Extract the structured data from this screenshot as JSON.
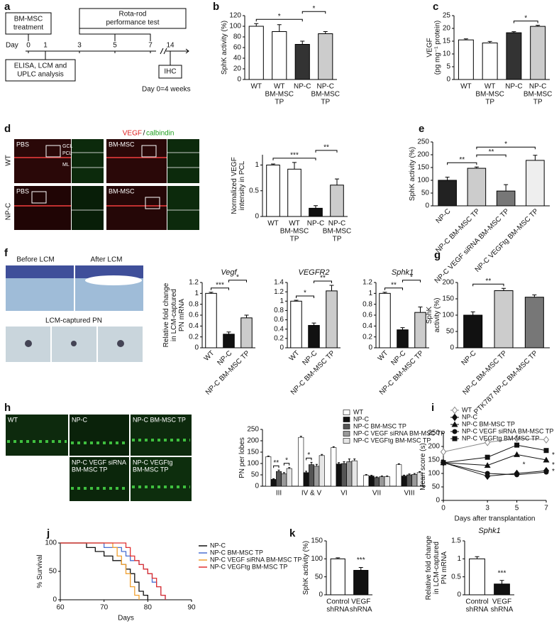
{
  "figure": {
    "panel_letters": [
      "a",
      "b",
      "c",
      "d",
      "e",
      "f",
      "g",
      "h",
      "i",
      "j",
      "k"
    ],
    "a": {
      "treatment": [
        "BM-MSC",
        "treatment"
      ],
      "rotarod": [
        "Rota-rod",
        "performance test"
      ],
      "day": "Day",
      "days": [
        "0",
        "1",
        "3",
        "5",
        "7",
        "14"
      ],
      "analysis": [
        "ELISA, LCM and",
        "UPLC analysis"
      ],
      "ihc": "IHC",
      "note": "Day 0=4 weeks"
    },
    "d": {
      "stain_red": "VEGF",
      "stain_sep": "/",
      "stain_green": "calbindin",
      "rows": [
        "WT",
        "NP-C"
      ],
      "images": [
        "PBS",
        "BM-MSC",
        "PBS",
        "BM-MSC"
      ],
      "layers": [
        "GCL",
        "PCL",
        "ML"
      ]
    },
    "f": {
      "images": [
        "Before LCM",
        "After LCM"
      ],
      "captured": "LCM-captured PN"
    },
    "h": {
      "images": [
        "WT",
        "NP-C",
        "NP-C BM-MSC TP"
      ],
      "images2": [
        [
          "NP-C VEGF siRNA",
          "BM-MSC TP"
        ],
        [
          "NP-C VEGFtg",
          "BM-MSC TP"
        ]
      ]
    }
  },
  "chart_data": [
    {
      "type": "bar",
      "ylabel": [
        "SphK activity (%)"
      ],
      "categories": [
        [
          "WT"
        ],
        [
          "WT",
          "BM-MSC",
          "TP"
        ],
        [
          "NP-C"
        ],
        [
          "NP-C",
          "BM-MSC",
          "TP"
        ]
      ],
      "values": [
        100,
        90,
        66,
        86
      ],
      "errors": [
        5,
        13,
        6,
        4
      ],
      "colors": [
        "#ffffff",
        "#ffffff",
        "#333333",
        "#cccccc"
      ],
      "ylim": [
        0,
        120
      ],
      "yticks": [
        0,
        20,
        40,
        60,
        80,
        100,
        120
      ],
      "annotations": [
        {
          "text": "*",
          "pair": [
            0,
            2
          ]
        },
        {
          "text": "*",
          "pair": [
            2,
            3
          ]
        }
      ]
    },
    {
      "type": "bar",
      "ylabel": [
        "VEGF",
        "(pg mg⁻¹ protein)"
      ],
      "categories": [
        [
          "WT"
        ],
        [
          "WT",
          "BM-MSC",
          "TP"
        ],
        [
          "NP-C"
        ],
        [
          "NP-C",
          "BM-MSC",
          "TP"
        ]
      ],
      "values": [
        15.5,
        14.3,
        18.3,
        20.8
      ],
      "errors": [
        0.4,
        0.6,
        0.4,
        0.4
      ],
      "colors": [
        "#ffffff",
        "#ffffff",
        "#333333",
        "#cccccc"
      ],
      "ylim": [
        0,
        25
      ],
      "yticks": [
        0,
        5,
        10,
        15,
        20,
        25
      ],
      "annotations": [
        {
          "text": "*",
          "pair": [
            2,
            3
          ]
        }
      ]
    },
    {
      "type": "bar",
      "ylabel": [
        "Normalized VEGF",
        "intensity in PCL"
      ],
      "categories": [
        [
          "WT"
        ],
        [
          "WT",
          "BM-MSC",
          "TP"
        ],
        [
          "NP-C"
        ],
        [
          "NP-C",
          "BM-MSC",
          "TP"
        ]
      ],
      "values": [
        1,
        0.92,
        0.16,
        0.61
      ],
      "errors": [
        0.02,
        0.13,
        0.05,
        0.12
      ],
      "colors": [
        "#ffffff",
        "#ffffff",
        "#111111",
        "#cccccc"
      ],
      "ylim": [
        0,
        1.2
      ],
      "yticks": [
        0,
        0.5,
        1
      ],
      "annotations": [
        {
          "text": "***",
          "pair": [
            0,
            2
          ]
        },
        {
          "text": "**",
          "pair": [
            2,
            3
          ]
        }
      ]
    },
    {
      "type": "bar",
      "ylabel": [
        "SphK activity (%)"
      ],
      "rotate_labels": true,
      "categories": [
        "NP-C",
        "NP-C BM-MSC TP",
        "NP-C VEGF siRNA BM-MSC TP",
        "NP-C VEGFtg BM-MSC TP"
      ],
      "values": [
        100,
        147,
        58,
        178
      ],
      "errors": [
        12,
        5,
        25,
        20
      ],
      "colors": [
        "#222222",
        "#cccccc",
        "#777777",
        "#eeeeee"
      ],
      "ylim": [
        0,
        250
      ],
      "yticks": [
        0,
        50,
        100,
        150,
        200,
        250
      ],
      "annotations": [
        {
          "text": "**",
          "pair": [
            0,
            1
          ]
        },
        {
          "text": "**",
          "pair": [
            1,
            2
          ]
        },
        {
          "text": "*",
          "pair": [
            1,
            3
          ]
        }
      ]
    },
    {
      "type": "bar",
      "title": "Vegf",
      "ylabel": [
        "Relative fold change",
        "in LCM-captured",
        "PN mRNA"
      ],
      "rotate_labels": true,
      "categories": [
        "WT",
        "NP-C",
        "NP-C BM-MSC TP"
      ],
      "values": [
        1,
        0.25,
        0.55
      ],
      "errors": [
        0.02,
        0.04,
        0.05
      ],
      "colors": [
        "#ffffff",
        "#111111",
        "#cccccc"
      ],
      "ylim": [
        0,
        1.2
      ],
      "yticks": [
        0,
        0.2,
        0.4,
        0.6,
        0.8,
        1,
        1.2
      ],
      "annotations": [
        {
          "text": "***",
          "pair": [
            0,
            1
          ]
        },
        {
          "text": "*",
          "pair": [
            1,
            2
          ]
        }
      ]
    },
    {
      "type": "bar",
      "title": "VEGFR2",
      "rotate_labels": true,
      "categories": [
        "WT",
        "NP-C",
        "NP-C BM-MSC TP"
      ],
      "values": [
        1,
        0.48,
        1.22
      ],
      "errors": [
        0.02,
        0.05,
        0.12
      ],
      "colors": [
        "#ffffff",
        "#111111",
        "#cccccc"
      ],
      "ylim": [
        0,
        1.4
      ],
      "yticks": [
        0,
        0.2,
        0.4,
        0.6,
        0.8,
        1,
        1.2,
        1.4
      ],
      "annotations": [
        {
          "text": "*",
          "pair": [
            0,
            1
          ]
        },
        {
          "text": "**",
          "pair": [
            1,
            2
          ]
        }
      ]
    },
    {
      "type": "bar",
      "title": "Sphk1",
      "rotate_labels": true,
      "categories": [
        "WT",
        "NP-C",
        "NP-C BM-MSC TP"
      ],
      "values": [
        1,
        0.33,
        0.65
      ],
      "errors": [
        0.02,
        0.04,
        0.1
      ],
      "colors": [
        "#ffffff",
        "#111111",
        "#cccccc"
      ],
      "ylim": [
        0,
        1.2
      ],
      "yticks": [
        0,
        0.2,
        0.4,
        0.6,
        0.8,
        1,
        1.2
      ],
      "annotations": [
        {
          "text": "**",
          "pair": [
            0,
            1
          ]
        },
        {
          "text": "*",
          "pair": [
            1,
            2
          ]
        }
      ]
    },
    {
      "type": "bar",
      "ylabel": [
        "SphK",
        "activity (%)"
      ],
      "rotate_labels": true,
      "categories": [
        "NP-C",
        "NP-C BM-MSC TP",
        "PTK787 NP-C BM-MSC TP"
      ],
      "values": [
        100,
        175,
        155
      ],
      "errors": [
        10,
        7,
        7
      ],
      "colors": [
        "#111111",
        "#cccccc",
        "#777777"
      ],
      "ylim": [
        0,
        200
      ],
      "yticks": [
        0,
        50,
        100,
        150,
        200
      ],
      "annotations": [
        {
          "text": "**",
          "pair": [
            0,
            1
          ]
        }
      ]
    },
    {
      "type": "grouped_bar",
      "ylabel": [
        "PN per lobes"
      ],
      "legend": "upper right",
      "categories": [
        "III",
        "IV & V",
        "VI",
        "VII",
        "VIII"
      ],
      "series": [
        {
          "name": "WT",
          "color": "#ffffff",
          "values": [
            130,
            215,
            170,
            48,
            95
          ],
          "errors": [
            3,
            5,
            4,
            3,
            4
          ]
        },
        {
          "name": "NP-C",
          "color": "#111111",
          "values": [
            30,
            60,
            98,
            45,
            45
          ],
          "errors": [
            3,
            6,
            6,
            3,
            4
          ]
        },
        {
          "name": "NP-C BM-MSC TP",
          "color": "#555555",
          "values": [
            65,
            95,
            100,
            38,
            50
          ],
          "errors": [
            6,
            10,
            8,
            3,
            4
          ]
        },
        {
          "name": "NP-C VEGF siRNA BM-MSC TP",
          "color": "#999999",
          "values": [
            55,
            88,
            108,
            42,
            52
          ],
          "errors": [
            5,
            8,
            12,
            3,
            4
          ]
        },
        {
          "name": "NP-C VEGFtg BM-MSC TP",
          "color": "#e6e6e6",
          "values": [
            78,
            135,
            112,
            42,
            60
          ],
          "errors": [
            4,
            5,
            8,
            3,
            4
          ]
        }
      ],
      "ylim": [
        0,
        250
      ],
      "yticks": [
        0,
        50,
        100,
        150,
        200,
        250
      ],
      "annotations": [
        {
          "text": "**",
          "category": 0,
          "pair": [
            1,
            2
          ]
        },
        {
          "text": "*",
          "category": 0,
          "pair": [
            3,
            4
          ]
        },
        {
          "text": "*",
          "category": 1,
          "pair": [
            1,
            2
          ]
        }
      ]
    },
    {
      "type": "line",
      "ylabel": [
        "Mean score (s)"
      ],
      "xlabel": "Days after transplantation",
      "legend": "upper left",
      "x": [
        0,
        3,
        5,
        7
      ],
      "xlim": [
        0,
        7
      ],
      "xticks": [
        0,
        3,
        5,
        7
      ],
      "series": [
        {
          "name": "WT",
          "color": "#888888",
          "marker": "diamond-open",
          "values": [
            180,
            215,
            230,
            225
          ]
        },
        {
          "name": "NP-C",
          "color": "#111111",
          "marker": "diamond",
          "values": [
            140,
            90,
            100,
            110
          ]
        },
        {
          "name": "NP-C BM-MSC TP",
          "color": "#111111",
          "marker": "triangle",
          "values": [
            140,
            130,
            170,
            150
          ]
        },
        {
          "name": "NP-C VEGF siRNA BM-MSC TP",
          "color": "#111111",
          "marker": "circle",
          "values": [
            140,
            100,
            95,
            105
          ]
        },
        {
          "name": "NP-C VEGFtg BM-MSC TP",
          "color": "#111111",
          "marker": "square",
          "values": [
            140,
            160,
            205,
            185
          ]
        }
      ],
      "ylim": [
        0,
        250
      ],
      "yticks": [
        0,
        50,
        100,
        150,
        200,
        250
      ],
      "annotations": [
        {
          "text": "*",
          "pair": [
            4,
            2
          ],
          "index": 3
        },
        {
          "text": "*",
          "pair": [
            2,
            1
          ],
          "index": 3
        },
        {
          "text": "*",
          "pair": [
            1,
            3
          ],
          "index": 3
        },
        {
          "text": "*",
          "pair": [
            2,
            3
          ],
          "index": 2
        }
      ]
    },
    {
      "type": "step",
      "ylabel": [
        "% Survival"
      ],
      "xlabel": "Days",
      "legend": "right",
      "xlim": [
        60,
        90
      ],
      "xticks": [
        60,
        70,
        80,
        90
      ],
      "ylim": [
        0,
        100
      ],
      "yticks": [
        0,
        50,
        100
      ],
      "series": [
        {
          "name": "NP-C",
          "color": "#111111",
          "x": [
            60,
            66,
            68,
            70,
            72,
            74,
            75,
            76,
            77,
            78,
            79,
            80
          ],
          "values": [
            100,
            92,
            85,
            77,
            69,
            62,
            54,
            46,
            31,
            15,
            8,
            0
          ]
        },
        {
          "name": "NP-C BM-MSC TP",
          "color": "#4a6fd0",
          "x": [
            60,
            70,
            74,
            75,
            76,
            78,
            79,
            80,
            81,
            82,
            83,
            84
          ],
          "values": [
            100,
            92,
            85,
            77,
            69,
            62,
            54,
            46,
            31,
            23,
            8,
            0
          ]
        },
        {
          "name": "NP-C VEGF siRNA BM-MSC TP",
          "color": "#f0a030",
          "x": [
            60,
            72,
            73,
            74,
            75,
            76,
            77,
            78
          ],
          "values": [
            100,
            92,
            77,
            62,
            46,
            23,
            8,
            0
          ]
        },
        {
          "name": "NP-C VEGFtg BM-MSC TP",
          "color": "#e03030",
          "x": [
            60,
            75,
            76,
            77,
            78,
            79,
            80,
            81,
            82,
            83,
            84
          ],
          "values": [
            100,
            92,
            77,
            69,
            62,
            54,
            46,
            38,
            23,
            8,
            0
          ]
        }
      ]
    },
    {
      "type": "bar",
      "ylabel": [
        "SphK activity (%)"
      ],
      "categories": [
        [
          "Control",
          "shRNA"
        ],
        [
          "VEGF",
          "shRNA"
        ]
      ],
      "values": [
        100,
        68
      ],
      "errors": [
        3,
        8
      ],
      "colors": [
        "#ffffff",
        "#111111"
      ],
      "ylim": [
        0,
        150
      ],
      "yticks": [
        0,
        50,
        100,
        150
      ],
      "annotations": [
        {
          "text": "***",
          "pair": [
            1,
            1
          ]
        }
      ]
    },
    {
      "type": "bar",
      "title": "Sphk1",
      "ylabel": [
        "Relative fold change",
        "in LCM-captured",
        "PN mRNA"
      ],
      "categories": [
        [
          "Control",
          "shRNA"
        ],
        [
          "VEGF",
          "shRNA"
        ]
      ],
      "values": [
        1,
        0.3
      ],
      "errors": [
        0.06,
        0.1
      ],
      "colors": [
        "#ffffff",
        "#111111"
      ],
      "ylim": [
        0,
        1.5
      ],
      "yticks": [
        0,
        0.5,
        1,
        1.5
      ],
      "annotations": [
        {
          "text": "***",
          "pair": [
            1,
            1
          ]
        }
      ]
    }
  ]
}
